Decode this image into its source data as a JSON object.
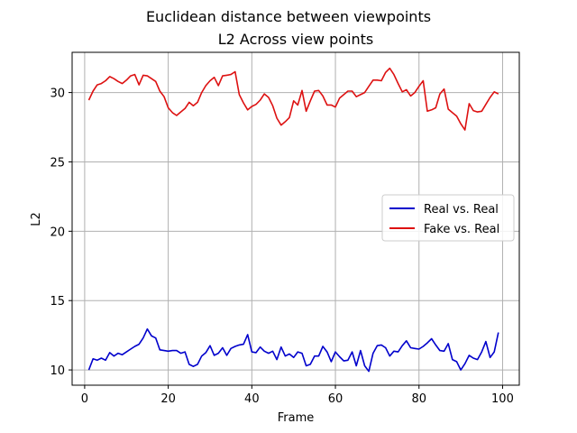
{
  "chart_data": {
    "type": "line",
    "suptitle": "Euclidean distance between viewpoints",
    "title": "L2 Across view points",
    "xlabel": "Frame",
    "ylabel": "L2",
    "xlim": [
      -3,
      104
    ],
    "ylim": [
      8.9,
      32.9
    ],
    "xticks": [
      0,
      20,
      40,
      60,
      80,
      100
    ],
    "xtick_labels": [
      "0",
      "20",
      "40",
      "60",
      "80",
      "100"
    ],
    "yticks": [
      10,
      15,
      20,
      25,
      30
    ],
    "ytick_labels": [
      "10",
      "15",
      "20",
      "25",
      "30"
    ],
    "grid": true,
    "legend_position": "center-right",
    "x": [
      1,
      2,
      3,
      4,
      5,
      6,
      7,
      8,
      9,
      10,
      11,
      12,
      13,
      14,
      15,
      16,
      17,
      18,
      19,
      20,
      21,
      22,
      23,
      24,
      25,
      26,
      27,
      28,
      29,
      30,
      31,
      32,
      33,
      34,
      35,
      36,
      37,
      38,
      39,
      40,
      41,
      42,
      43,
      44,
      45,
      46,
      47,
      48,
      49,
      50,
      51,
      52,
      53,
      54,
      55,
      56,
      57,
      58,
      59,
      60,
      61,
      62,
      63,
      64,
      65,
      66,
      67,
      68,
      69,
      70,
      71,
      72,
      73,
      74,
      75,
      76,
      77,
      78,
      79,
      80,
      81,
      82,
      83,
      84,
      85,
      86,
      87,
      88,
      89,
      90,
      91,
      92,
      93,
      94,
      95,
      96,
      97,
      98,
      99
    ],
    "series": [
      {
        "name": "Real vs. Real",
        "color": "#0000cc",
        "values": [
          10.0,
          10.8,
          10.7,
          10.85,
          10.7,
          11.25,
          11.0,
          11.2,
          11.1,
          11.3,
          11.5,
          11.7,
          11.85,
          12.3,
          12.95,
          12.45,
          12.3,
          11.45,
          11.4,
          11.35,
          11.4,
          11.4,
          11.2,
          11.3,
          10.4,
          10.25,
          10.4,
          11.0,
          11.25,
          11.75,
          11.05,
          11.2,
          11.6,
          11.05,
          11.55,
          11.7,
          11.8,
          11.85,
          12.55,
          11.3,
          11.25,
          11.65,
          11.35,
          11.2,
          11.35,
          10.75,
          11.65,
          11.0,
          11.15,
          10.9,
          11.3,
          11.2,
          10.3,
          10.4,
          11.0,
          11.0,
          11.7,
          11.3,
          10.6,
          11.3,
          10.95,
          10.65,
          10.7,
          11.3,
          10.3,
          11.4,
          10.3,
          9.9,
          11.2,
          11.75,
          11.8,
          11.6,
          11.0,
          11.35,
          11.3,
          11.75,
          12.1,
          11.6,
          11.55,
          11.5,
          11.7,
          11.95,
          12.25,
          11.8,
          11.4,
          11.35,
          11.9,
          10.75,
          10.6,
          10.0,
          10.45,
          11.05,
          10.85,
          10.75,
          11.3,
          12.05,
          10.9,
          11.3,
          12.7
        ]
      },
      {
        "name": "Fake vs. Real",
        "color": "#dd1111",
        "values": [
          29.45,
          30.1,
          30.55,
          30.65,
          30.85,
          31.15,
          31.0,
          30.8,
          30.65,
          30.9,
          31.2,
          31.3,
          30.55,
          31.25,
          31.2,
          31.0,
          30.8,
          30.1,
          29.7,
          28.9,
          28.55,
          28.35,
          28.6,
          28.85,
          29.3,
          29.05,
          29.3,
          30.0,
          30.5,
          30.85,
          31.1,
          30.5,
          31.2,
          31.25,
          31.3,
          31.5,
          29.85,
          29.25,
          28.75,
          29.0,
          29.15,
          29.45,
          29.9,
          29.65,
          29.05,
          28.15,
          27.65,
          27.9,
          28.2,
          29.4,
          29.1,
          30.15,
          28.65,
          29.4,
          30.1,
          30.15,
          29.75,
          29.1,
          29.1,
          28.95,
          29.6,
          29.85,
          30.1,
          30.1,
          29.7,
          29.85,
          30.0,
          30.45,
          30.9,
          30.9,
          30.85,
          31.45,
          31.75,
          31.3,
          30.65,
          30.05,
          30.2,
          29.75,
          30.0,
          30.45,
          30.85,
          28.65,
          28.75,
          28.9,
          29.9,
          30.25,
          28.8,
          28.55,
          28.3,
          27.75,
          27.3,
          29.2,
          28.7,
          28.6,
          28.65,
          29.15,
          29.65,
          30.05,
          29.9
        ]
      }
    ]
  }
}
